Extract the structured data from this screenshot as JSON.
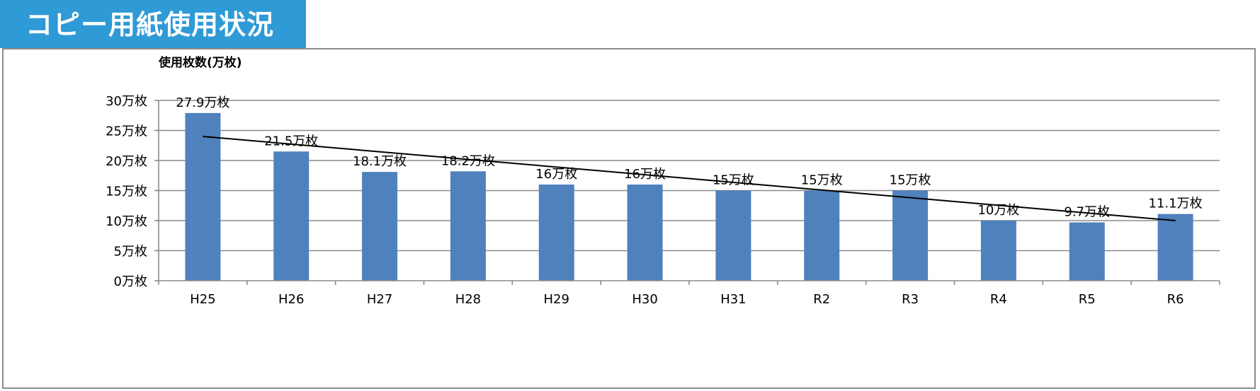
{
  "header": {
    "title": "コピー用紙使用状況"
  },
  "chart_data": {
    "type": "bar",
    "ylabel": "使用枚数(万枚)",
    "categories": [
      "H25",
      "H26",
      "H27",
      "H28",
      "H29",
      "H30",
      "H31",
      "R2",
      "R3",
      "R4",
      "R5",
      "R6"
    ],
    "values": [
      27.9,
      21.5,
      18.1,
      18.2,
      16,
      16,
      15,
      15,
      15,
      10,
      9.7,
      11.1
    ],
    "data_labels": [
      "27.9万枚",
      "21.5万枚",
      "18.1万枚",
      "18.2万枚",
      "16万枚",
      "16万枚",
      "15万枚",
      "15万枚",
      "15万枚",
      "10万枚",
      "9.7万枚",
      "11.1万枚"
    ],
    "y_ticks": [
      0,
      5,
      10,
      15,
      20,
      25,
      30
    ],
    "y_tick_labels": [
      "0万枚",
      "5万枚",
      "10万枚",
      "15万枚",
      "20万枚",
      "25万枚",
      "30万枚"
    ],
    "ylim": [
      0,
      30
    ],
    "trendline": {
      "type": "linear",
      "start": 24.0,
      "end": 10.0
    },
    "grid": true,
    "colors": {
      "bar": "#4f81bd",
      "trend": "#000000",
      "grid": "#8c8c8c"
    }
  }
}
